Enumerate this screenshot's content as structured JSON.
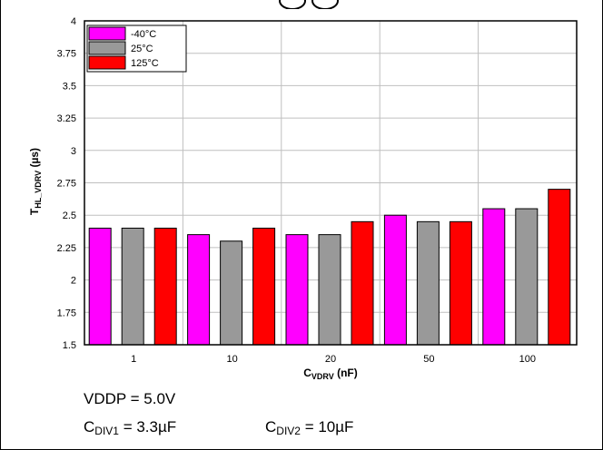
{
  "colors": {
    "series": [
      "#ff00ff",
      "#999999",
      "#ff0000"
    ],
    "grid": "#bfbfbf",
    "axis": "#000000",
    "background": "#ffffff"
  },
  "chart_data": {
    "type": "bar",
    "categories": [
      "1",
      "10",
      "20",
      "50",
      "100"
    ],
    "series": [
      {
        "name": "-40°C",
        "values": [
          2.4,
          2.35,
          2.35,
          2.5,
          2.55
        ]
      },
      {
        "name": "25°C",
        "values": [
          2.4,
          2.3,
          2.35,
          2.45,
          2.55
        ]
      },
      {
        "name": "125°C",
        "values": [
          2.4,
          2.4,
          2.45,
          2.45,
          2.7
        ]
      }
    ],
    "ylim": [
      1.5,
      4
    ],
    "yticks": [
      "1.5",
      "1.75",
      "2",
      "2.25",
      "2.5",
      "2.75",
      "3",
      "3.25",
      "3.5",
      "3.75",
      "4"
    ],
    "ylabel": {
      "main": "T",
      "sub": "HL_VDRV",
      "unit": " (µs)"
    },
    "xlabel": {
      "main": "C",
      "sub": "VDRV",
      "unit": " (nF)"
    },
    "grid": true,
    "legend_position": "top-left"
  },
  "conditions": {
    "vddp": "VDDP = 5.0V",
    "cdiv1": {
      "main": "C",
      "sub": "DIV1",
      "value": " = 3.3µF"
    },
    "cdiv2": {
      "main": "C",
      "sub": "DIV2",
      "value": " = 10µF"
    }
  }
}
